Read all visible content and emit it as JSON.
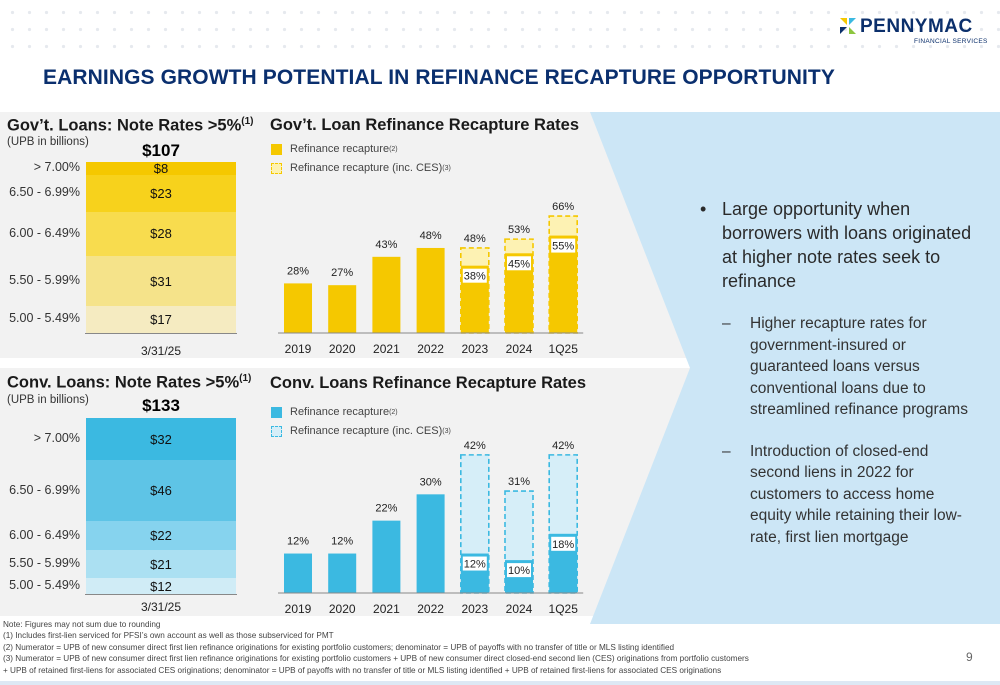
{
  "logo": {
    "name": "PENNYMAC",
    "sub": "FINANCIAL SERVICES"
  },
  "title": "EARNINGS GROWTH POTENTIAL IN REFINANCE RECAPTURE OPPORTUNITY",
  "colors": {
    "gov_primary": "#f5c800",
    "conv_primary": "#3bb9e1",
    "title_blue": "#0a2f6e",
    "arrow_bg": "#cce6f6"
  },
  "gov_stack": {
    "title": "Gov’t. Loans: Note Rates >5%",
    "title_sup": "(1)",
    "subtitle": "(UPB in billions)",
    "total": "$107",
    "date": "3/31/25",
    "rows": [
      {
        "label": "> 7.00%",
        "value": "$8",
        "upb": 8,
        "color": "#f5c800"
      },
      {
        "label": "6.50 - 6.99%",
        "value": "$23",
        "upb": 23,
        "color": "#f7d21c"
      },
      {
        "label": "6.00 - 6.49%",
        "value": "$28",
        "upb": 28,
        "color": "#f8dc4e"
      },
      {
        "label": "5.50 - 5.99%",
        "value": "$31",
        "upb": 31,
        "color": "#f5e38a"
      },
      {
        "label": "5.00 - 5.49%",
        "value": "$17",
        "upb": 17,
        "color": "#f5ebc1"
      }
    ]
  },
  "conv_stack": {
    "title": "Conv. Loans: Note Rates >5%",
    "title_sup": "(1)",
    "subtitle": "(UPB in billions)",
    "total": "$133",
    "date": "3/31/25",
    "rows": [
      {
        "label": "> 7.00%",
        "value": "$32",
        "upb": 32,
        "color": "#3bb9e1"
      },
      {
        "label": "6.50 - 6.99%",
        "value": "$46",
        "upb": 46,
        "color": "#5ec4e6"
      },
      {
        "label": "6.00 - 6.49%",
        "value": "$22",
        "upb": 22,
        "color": "#86d3ee"
      },
      {
        "label": "5.50 - 5.99%",
        "value": "$21",
        "upb": 21,
        "color": "#abe0f2"
      },
      {
        "label": "5.00 - 5.49%",
        "value": "$12",
        "upb": 12,
        "color": "#d0ecf6"
      }
    ]
  },
  "chart_data": [
    {
      "type": "bar",
      "title": "Gov’t. Loan Refinance Recapture Rates",
      "categories": [
        "2019",
        "2020",
        "2021",
        "2022",
        "2023",
        "2024",
        "1Q25"
      ],
      "legend": [
        {
          "label": "Refinance recapture",
          "sup": "(2)"
        },
        {
          "label": "Refinance recapture (inc. CES)",
          "sup": "(3)"
        }
      ],
      "series": [
        {
          "name": "Refinance recapture",
          "values": [
            28,
            27,
            43,
            48,
            38,
            45,
            55
          ],
          "labels": [
            "28%",
            "27%",
            "43%",
            "48%",
            "38%",
            "45%",
            "55%"
          ]
        },
        {
          "name": "Refinance recapture (inc. CES)",
          "values": [
            null,
            null,
            null,
            null,
            48,
            53,
            66
          ],
          "labels": [
            "",
            "",
            "",
            "",
            "48%",
            "53%",
            "66%"
          ]
        }
      ],
      "ylim": [
        0,
        70
      ],
      "color": "#f5c800",
      "fill_light": "#fdf2b3"
    },
    {
      "type": "bar",
      "title": "Conv. Loans Refinance Recapture Rates",
      "categories": [
        "2019",
        "2020",
        "2021",
        "2022",
        "2023",
        "2024",
        "1Q25"
      ],
      "legend": [
        {
          "label": "Refinance recapture",
          "sup": "(2)"
        },
        {
          "label": "Refinance recapture (inc. CES)",
          "sup": "(3)"
        }
      ],
      "series": [
        {
          "name": "Refinance recapture",
          "values": [
            12,
            12,
            22,
            30,
            12,
            10,
            18
          ],
          "labels": [
            "12%",
            "12%",
            "22%",
            "30%",
            "12%",
            "10%",
            "18%"
          ]
        },
        {
          "name": "Refinance recapture (inc. CES)",
          "values": [
            null,
            null,
            null,
            null,
            42,
            31,
            42
          ],
          "labels": [
            "",
            "",
            "",
            "",
            "42%",
            "31%",
            "42%"
          ]
        }
      ],
      "ylim": [
        0,
        45
      ],
      "color": "#3bb9e1",
      "fill_light": "#d6eef8"
    }
  ],
  "bullets": {
    "main": "Large opportunity when borrowers with loans originated at higher note rates seek to refinance",
    "subs": [
      "Higher recapture rates for government-insured or guaranteed loans versus conventional loans due to streamlined refinance programs",
      "Introduction of closed-end second liens in 2022 for customers to access home equity while retaining their low-rate, first lien mortgage"
    ]
  },
  "footnotes": [
    "Note: Figures may not sum due to rounding",
    "(1) Includes first-lien serviced for PFSI’s own account as well as those subserviced for PMT",
    "(2) Numerator = UPB of new consumer direct first lien refinance originations for existing portfolio customers; denominator = UPB of payoffs with no transfer of title or MLS listing identified",
    "(3) Numerator = UPB of new consumer direct first lien refinance originations for existing portfolio customers  + UPB of new consumer direct closed-end second lien (CES) originations from portfolio customers",
    "+ UPB of retained first-liens for associated CES originations; denominator = UPB of payoffs with no transfer of title or MLS listing identified + UPB of retained first-liens for associated CES originations"
  ],
  "page_number": "9"
}
